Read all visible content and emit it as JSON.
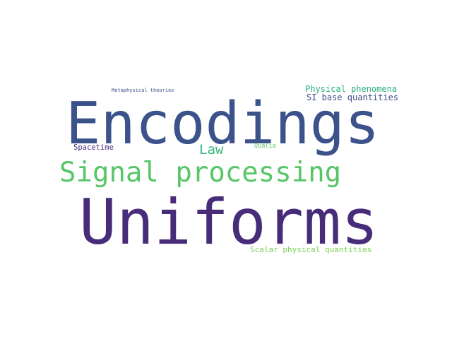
{
  "word_cloud": {
    "words": [
      {
        "id": "encodings",
        "text": "Encodings",
        "color": "#3b528b"
      },
      {
        "id": "uniforms",
        "text": "Uniforms",
        "color": "#472c7a"
      },
      {
        "id": "signal",
        "text": "Signal processing",
        "color": "#56c667"
      },
      {
        "id": "law",
        "text": "Law",
        "color": "#35b779"
      },
      {
        "id": "physical",
        "text": "Physical phenomena",
        "color": "#29af7f"
      },
      {
        "id": "si",
        "text": "SI base quantities",
        "color": "#3e4c8a"
      },
      {
        "id": "spacetime",
        "text": "Spacetime",
        "color": "#472d7b"
      },
      {
        "id": "qualia",
        "text": "Qualia",
        "color": "#5ec962"
      },
      {
        "id": "meta",
        "text": "Metaphysical theories",
        "color": "#3b528b"
      },
      {
        "id": "scalar",
        "text": "Scalar physical quantities",
        "color": "#7ad151"
      }
    ]
  }
}
